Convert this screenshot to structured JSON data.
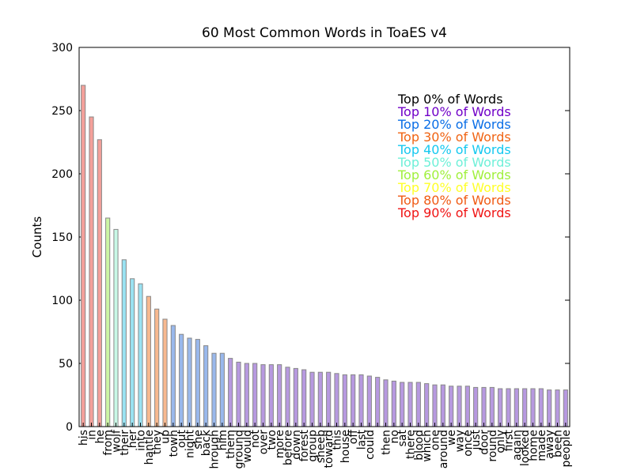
{
  "chart_data": {
    "type": "bar",
    "title": "60 Most Common Words in ToaES v4",
    "y_label": "Counts",
    "categories": [
      "his",
      "in",
      "he",
      "from",
      "wolf",
      "their",
      "her",
      "into",
      "hantle",
      "they",
      "up",
      "town",
      "out",
      "night",
      "she",
      "back",
      "hrough",
      "him",
      "them",
      "ground",
      "would",
      "not",
      "over",
      "two",
      "more",
      "before",
      "down",
      "forest",
      "group",
      "sheep",
      "toward",
      "this",
      "house",
      "off",
      "last",
      "could",
      null,
      "then",
      "no",
      "sat",
      "there",
      "blood",
      "which",
      "one",
      "around",
      "we",
      "way",
      "once",
      "just",
      "door",
      "round",
      "only",
      "first",
      "again",
      "looked",
      "home",
      "made",
      "away",
      "been",
      "people"
    ],
    "values": [
      270,
      245,
      227,
      165,
      156,
      132,
      117,
      113,
      103,
      93,
      85,
      80,
      73,
      70,
      69,
      64,
      58,
      58,
      54,
      51,
      50,
      50,
      49,
      49,
      49,
      47,
      46,
      45,
      43,
      43,
      43,
      42,
      41,
      41,
      41,
      40,
      39,
      37,
      36,
      35,
      35,
      35,
      34,
      33,
      33,
      32,
      32,
      32,
      31,
      31,
      31,
      30,
      30,
      30,
      30,
      30,
      30,
      29,
      29,
      29
    ],
    "colors": [
      "#f4a09a",
      "#f4a09a",
      "#f4a09a",
      "#ccf5a5",
      "#c8f8e6",
      "#99e2f2",
      "#99e2f2",
      "#99e2f2",
      "#f8b98f",
      "#f8b98f",
      "#f8b98f",
      "#99b8ec",
      "#99b8ec",
      "#99b8ec",
      "#99b8ec",
      "#99b8ec",
      "#99b8ec",
      "#99b8ec",
      "#b799e0",
      "#b799e0",
      "#b799e0",
      "#b799e0",
      "#b799e0",
      "#b799e0",
      "#b799e0",
      "#b799e0",
      "#b799e0",
      "#b799e0",
      "#b799e0",
      "#b799e0",
      "#b799e0",
      "#b799e0",
      "#b799e0",
      "#b799e0",
      "#b799e0",
      "#b799e0",
      "#b799e0",
      "#b799e0",
      "#b799e0",
      "#b799e0",
      "#b799e0",
      "#b799e0",
      "#b799e0",
      "#b799e0",
      "#b799e0",
      "#b799e0",
      "#b799e0",
      "#b799e0",
      "#b799e0",
      "#b799e0",
      "#b799e0",
      "#b799e0",
      "#b799e0",
      "#b799e0",
      "#b799e0",
      "#b799e0",
      "#b799e0",
      "#b799e0",
      "#b799e0",
      "#b799e0"
    ],
    "ylim": [
      0,
      300
    ],
    "yticks": [
      0,
      50,
      100,
      150,
      200,
      250,
      300
    ],
    "legend": [
      {
        "label": "Top 0% of Words",
        "color": "#000000"
      },
      {
        "label": "Top 10% of Words",
        "color": "#7000c8"
      },
      {
        "label": "Top 20% of Words",
        "color": "#0a6ee6"
      },
      {
        "label": "Top 30% of Words",
        "color": "#f06414"
      },
      {
        "label": "Top 40% of Words",
        "color": "#14c8f0"
      },
      {
        "label": "Top 50% of Words",
        "color": "#6ef0d8"
      },
      {
        "label": "Top 60% of Words",
        "color": "#a0f03c"
      },
      {
        "label": "Top 70% of Words",
        "color": "#ffff28"
      },
      {
        "label": "Top 80% of Words",
        "color": "#f05a14"
      },
      {
        "label": "Top 90% of Words",
        "color": "#f01414"
      }
    ]
  }
}
